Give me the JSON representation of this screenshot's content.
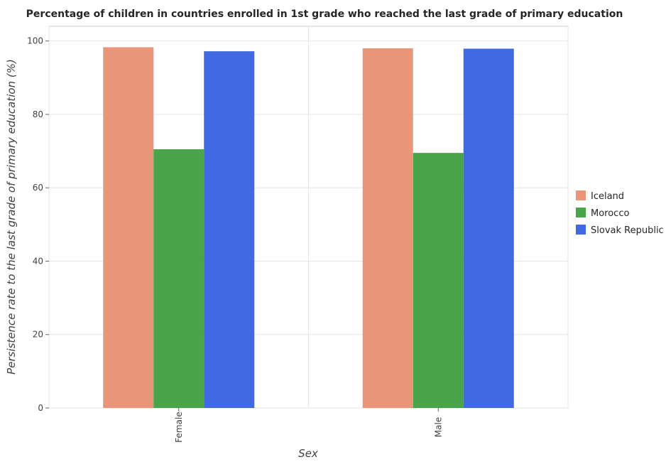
{
  "chart_data": {
    "type": "bar",
    "title": "Percentage of children in countries enrolled in 1st grade who reached the last grade of primary education",
    "xlabel": "Sex",
    "ylabel": "Persistence rate to the last grade of primary education (%)",
    "categories": [
      "Female",
      "Male"
    ],
    "series": [
      {
        "name": "Iceland",
        "values": [
          98.3,
          98.0
        ],
        "color": "#e8957a"
      },
      {
        "name": "Morocco",
        "values": [
          70.5,
          69.5
        ],
        "color": "#4aa54a"
      },
      {
        "name": "Slovak Republic",
        "values": [
          97.2,
          97.9
        ],
        "color": "#4169e1"
      }
    ],
    "ylim": [
      0,
      104
    ],
    "yticks": [
      0,
      20,
      40,
      60,
      80,
      100
    ],
    "grid": true,
    "legend_position": "right"
  }
}
